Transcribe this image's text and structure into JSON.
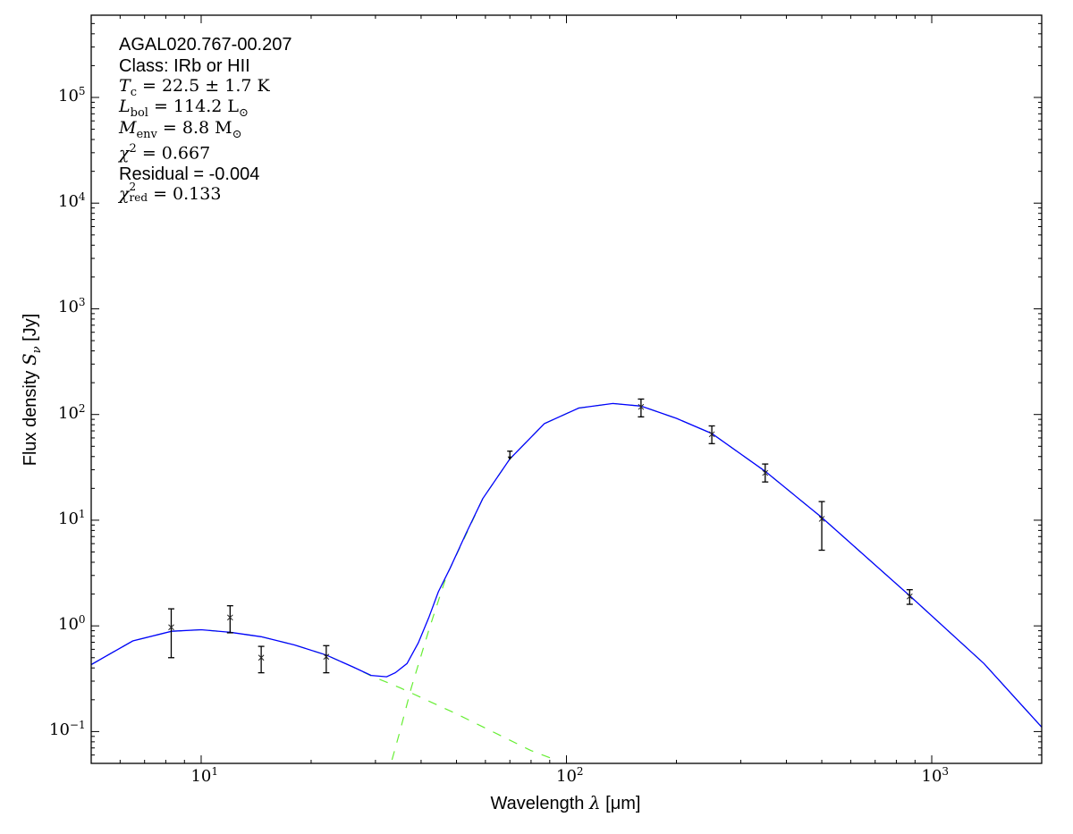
{
  "chart_data": {
    "type": "line",
    "xlabel": {
      "text": "Wavelength ",
      "symbol": "λ",
      "unit": " [μm]"
    },
    "ylabel": {
      "text": "Flux density ",
      "symbol": "S",
      "sub": "ν",
      "unit": " [Jy]"
    },
    "xscale": "log",
    "yscale": "log",
    "xlim": [
      5,
      2000
    ],
    "ylim": [
      0.05,
      600000
    ],
    "x_ticks": [
      {
        "base": "10",
        "exp": "1",
        "value": 10
      },
      {
        "base": "10",
        "exp": "2",
        "value": 100
      },
      {
        "base": "10",
        "exp": "3",
        "value": 1000
      }
    ],
    "y_ticks": [
      {
        "base": "10",
        "exp": "−1",
        "value": 0.1
      },
      {
        "base": "10",
        "exp": "0",
        "value": 1
      },
      {
        "base": "10",
        "exp": "1",
        "value": 10
      },
      {
        "base": "10",
        "exp": "2",
        "value": 100
      },
      {
        "base": "10",
        "exp": "3",
        "value": 1000
      },
      {
        "base": "10",
        "exp": "4",
        "value": 10000
      },
      {
        "base": "10",
        "exp": "5",
        "value": 100000
      }
    ],
    "grid": false,
    "colors": {
      "total": "#0000ff",
      "components": "#66ee33",
      "data": "#000000"
    },
    "measurements": [
      {
        "x": 8.28,
        "y": 0.97,
        "ylo": 0.5,
        "yhi": 1.45,
        "upper_limit": false
      },
      {
        "x": 12,
        "y": 1.2,
        "ylo": 0.86,
        "yhi": 1.55,
        "upper_limit": false
      },
      {
        "x": 14.6,
        "y": 0.5,
        "ylo": 0.36,
        "yhi": 0.64,
        "upper_limit": false
      },
      {
        "x": 22,
        "y": 0.51,
        "ylo": 0.36,
        "yhi": 0.65,
        "upper_limit": false
      },
      {
        "x": 70,
        "y": 40,
        "ylo": 33,
        "yhi": 45,
        "upper_limit": true
      },
      {
        "x": 160,
        "y": 118,
        "ylo": 95,
        "yhi": 140,
        "upper_limit": false
      },
      {
        "x": 250,
        "y": 65,
        "ylo": 53,
        "yhi": 78,
        "upper_limit": false
      },
      {
        "x": 350,
        "y": 28,
        "ylo": 23,
        "yhi": 34,
        "upper_limit": false
      },
      {
        "x": 500,
        "y": 10.3,
        "ylo": 5.2,
        "yhi": 15,
        "upper_limit": false
      },
      {
        "x": 870,
        "y": 1.9,
        "ylo": 1.6,
        "yhi": 2.2,
        "upper_limit": false
      }
    ],
    "series": [
      {
        "role": "warm-component",
        "style": "dashed",
        "x": [
          5,
          6.5,
          8.3,
          10,
          12,
          14.6,
          18,
          22,
          26,
          29,
          35,
          40,
          50,
          65,
          80,
          92
        ],
        "y": [
          0.43,
          0.72,
          0.89,
          0.92,
          0.87,
          0.79,
          0.66,
          0.53,
          0.41,
          0.34,
          0.26,
          0.21,
          0.147,
          0.094,
          0.066,
          0.055
        ]
      },
      {
        "role": "cold-component",
        "style": "dashed",
        "x": [
          33.3,
          35,
          37.6,
          42.2,
          47,
          53,
          59,
          70,
          87,
          108,
          134,
          160,
          200,
          250,
          350,
          500,
          870,
          1390,
          2000
        ],
        "y": [
          0.054,
          0.1,
          0.26,
          0.96,
          3.0,
          7.2,
          16,
          38,
          82,
          115,
          127,
          120,
          92,
          66,
          29,
          10.6,
          1.93,
          0.44,
          0.11
        ]
      },
      {
        "role": "total-model",
        "style": "solid",
        "x": [
          5,
          6.5,
          8.3,
          10,
          12,
          14.6,
          18,
          22,
          26,
          29.2,
          32.2,
          34,
          36.6,
          39.3,
          42,
          44.6,
          48,
          53,
          59,
          70,
          87,
          108,
          134,
          160,
          200,
          250,
          350,
          500,
          870,
          1390,
          2000
        ],
        "y": [
          0.43,
          0.72,
          0.89,
          0.92,
          0.87,
          0.79,
          0.66,
          0.53,
          0.41,
          0.34,
          0.33,
          0.36,
          0.44,
          0.69,
          1.2,
          2.1,
          3.5,
          7.4,
          16,
          38,
          82,
          115,
          127,
          120,
          92,
          66,
          29,
          10.6,
          1.93,
          0.44,
          0.11
        ]
      }
    ]
  },
  "annotations": {
    "source": "AGAL020.767-00.207",
    "class": "Class: IRb or HII",
    "tc": {
      "sym": "T",
      "sub": "c",
      "rest": " = 22.5 ± 1.7 K"
    },
    "lbol": {
      "sym": "L",
      "sub": "bol",
      "rest": " = 114.2 L",
      "unit_sub": "⊙"
    },
    "menv": {
      "sym": "M",
      "sub": "env",
      "rest": " = 8.8 M",
      "unit_sub": "⊙"
    },
    "chi2": {
      "sym": "χ",
      "sup": "2",
      "rest": " = 0.667"
    },
    "residual": "Residual = -0.004",
    "chi2red": {
      "sym": "χ",
      "sup": "2",
      "sub": "red",
      "rest": " = 0.133"
    }
  }
}
